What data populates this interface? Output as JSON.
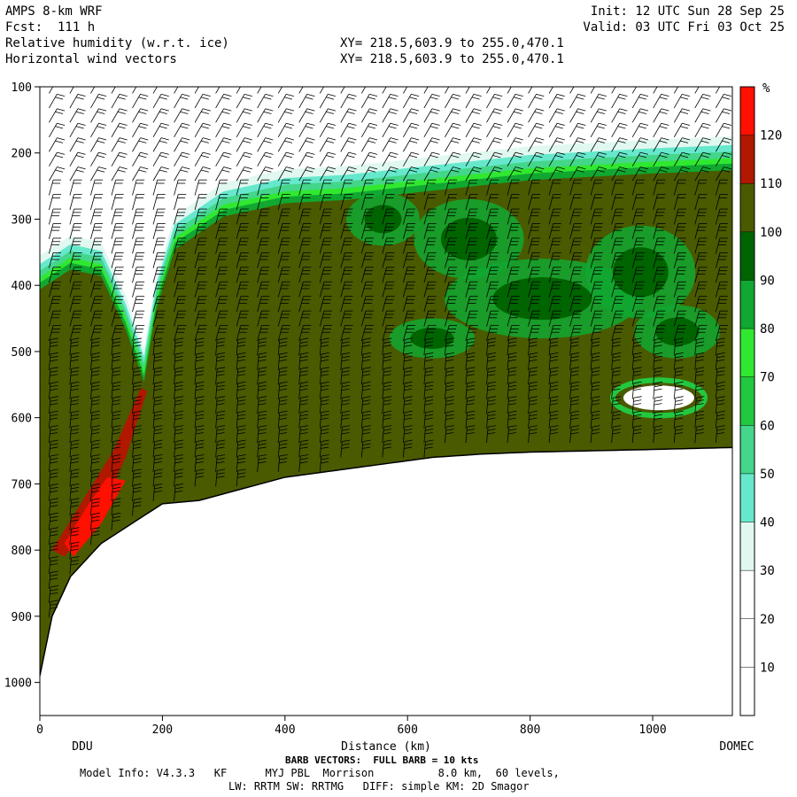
{
  "header": {
    "model": "AMPS 8-km WRF",
    "fcst": "Fcst:  111 h",
    "field1": "Relative humidity (w.r.t. ice)",
    "field2": "Horizontal wind vectors",
    "xy1": "XY= 218.5,603.9 to 255.0,470.1",
    "xy2": "XY= 218.5,603.9 to 255.0,470.1",
    "init": "Init: 12 UTC Sun 28 Sep 25",
    "valid": "Valid: 03 UTC Fri 03 Oct 25"
  },
  "chart_data": {
    "type": "heatmap",
    "title": "Relative humidity (w.r.t. ice)",
    "xlabel": "Distance (km)",
    "ylabel": "",
    "xlim": [
      0,
      1130
    ],
    "ylim": [
      1050,
      100
    ],
    "x_ticks": [
      0,
      200,
      400,
      600,
      800,
      1000
    ],
    "y_ticks": [
      100,
      200,
      300,
      400,
      500,
      600,
      700,
      800,
      900,
      1000
    ],
    "x_endpoint_labels": {
      "left": "DDU",
      "right": "DOMEC"
    },
    "colorbar": {
      "unit": "%",
      "levels": [
        10,
        20,
        30,
        40,
        50,
        60,
        70,
        80,
        90,
        100,
        110,
        120
      ],
      "colors": [
        "#ffffff",
        "#ffffff",
        "#ffffff",
        "#e0f8f0",
        "#66e8cc",
        "#44d68a",
        "#22c840",
        "#30e830",
        "#10a830",
        "#006400",
        "#4a5a00",
        "#b01800",
        "#ff1000"
      ]
    },
    "terrain_profile": [
      {
        "x": 0,
        "p": 990
      },
      {
        "x": 20,
        "p": 900
      },
      {
        "x": 50,
        "p": 840
      },
      {
        "x": 100,
        "p": 790
      },
      {
        "x": 150,
        "p": 760
      },
      {
        "x": 200,
        "p": 730
      },
      {
        "x": 260,
        "p": 725
      },
      {
        "x": 320,
        "p": 710
      },
      {
        "x": 400,
        "p": 690
      },
      {
        "x": 480,
        "p": 680
      },
      {
        "x": 560,
        "p": 670
      },
      {
        "x": 640,
        "p": 660
      },
      {
        "x": 720,
        "p": 655
      },
      {
        "x": 800,
        "p": 652
      },
      {
        "x": 900,
        "p": 650
      },
      {
        "x": 1000,
        "p": 648
      },
      {
        "x": 1130,
        "p": 645
      }
    ],
    "cloud_top": [
      {
        "x": 0,
        "p": 400
      },
      {
        "x": 50,
        "p": 370
      },
      {
        "x": 100,
        "p": 380
      },
      {
        "x": 140,
        "p": 460
      },
      {
        "x": 170,
        "p": 540
      },
      {
        "x": 190,
        "p": 430
      },
      {
        "x": 220,
        "p": 340
      },
      {
        "x": 300,
        "p": 290
      },
      {
        "x": 400,
        "p": 270
      },
      {
        "x": 500,
        "p": 265
      },
      {
        "x": 600,
        "p": 255
      },
      {
        "x": 700,
        "p": 245
      },
      {
        "x": 800,
        "p": 235
      },
      {
        "x": 900,
        "p": 230
      },
      {
        "x": 1000,
        "p": 225
      },
      {
        "x": 1130,
        "p": 220
      }
    ]
  },
  "footer": {
    "barb": "BARB VECTORS:  FULL BARB = 10 kts",
    "line1": "Model Info: V4.3.3   KF      MYJ PBL  Morrison          8.0 km,  60 levels,",
    "line2": "LW: RRTM SW: RRTMG   DIFF: simple KM: 2D Smagor"
  }
}
